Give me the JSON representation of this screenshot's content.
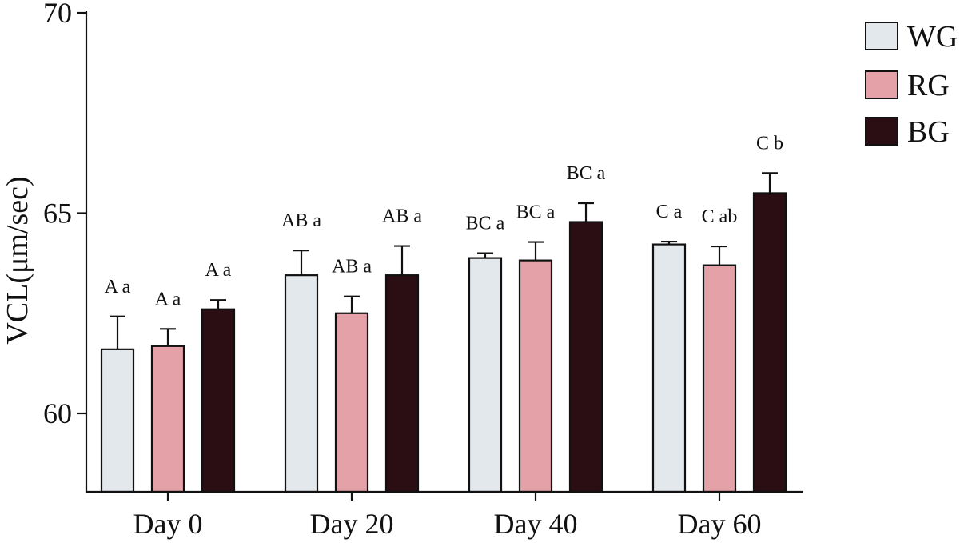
{
  "chart_data": {
    "type": "bar",
    "title": "",
    "xlabel": "",
    "ylabel": "VCL(μm/sec)",
    "ylim": [
      58,
      70
    ],
    "yticks": [
      60,
      65,
      70
    ],
    "categories": [
      "Day 0",
      "Day 20",
      "Day 40",
      "Day 60"
    ],
    "series": [
      {
        "name": "WG",
        "color": "#e3e8ec",
        "values": [
          61.6,
          63.45,
          63.88,
          64.22
        ],
        "errors": [
          0.82,
          0.62,
          0.12,
          0.07
        ],
        "labels": [
          "A a",
          "AB a",
          "BC a",
          "C a"
        ]
      },
      {
        "name": "RG",
        "color": "#e4a2a8",
        "values": [
          61.68,
          62.5,
          63.82,
          63.7
        ],
        "errors": [
          0.43,
          0.42,
          0.46,
          0.47
        ],
        "labels": [
          "A a",
          "AB a",
          "BC a",
          "C ab"
        ]
      },
      {
        "name": "BG",
        "color": "#2a0e14",
        "values": [
          62.6,
          63.45,
          64.78,
          65.5
        ],
        "errors": [
          0.23,
          0.73,
          0.47,
          0.5
        ],
        "labels": [
          "A a",
          "AB a",
          "BC a",
          "C b"
        ]
      }
    ],
    "legend_position": "top-right",
    "grid": false
  }
}
